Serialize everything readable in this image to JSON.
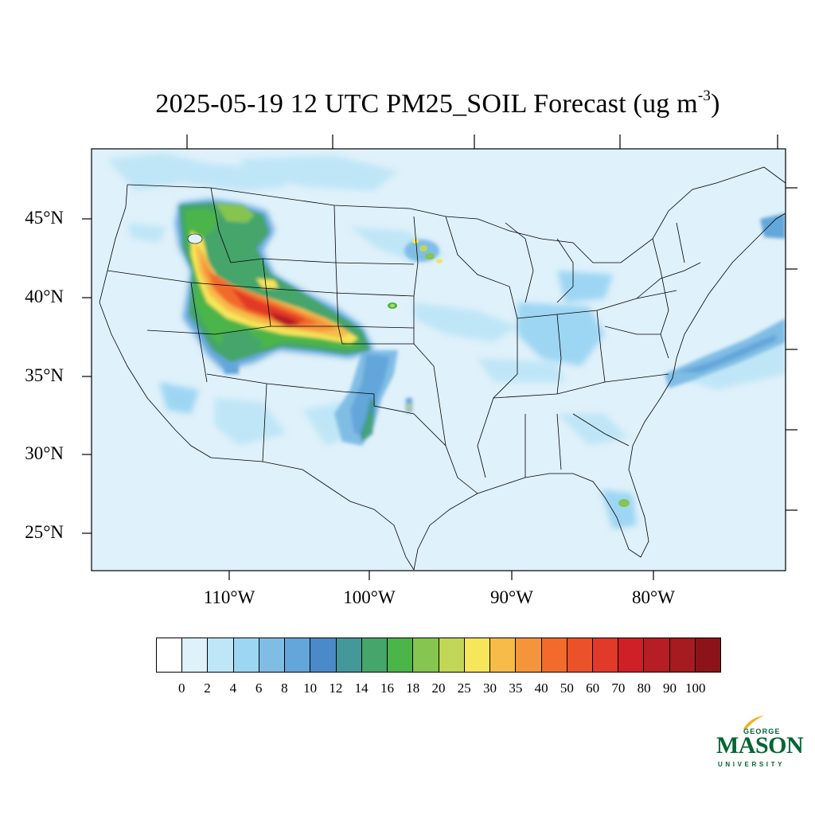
{
  "title": {
    "text": "2025-05-19 12 UTC PM25_SOIL Forecast (ug m",
    "exponent": "-3",
    "close": ")"
  },
  "map": {
    "region": "Continental United States",
    "projection": "Lambert conformal",
    "background_color": "#dff1fa",
    "lat_labels": [
      "45°N",
      "40°N",
      "35°N",
      "30°N",
      "25°N"
    ],
    "lon_labels": [
      "110°W",
      "100°W",
      "90°W",
      "80°W"
    ]
  },
  "chart_data": {
    "type": "heatmap",
    "title": "2025-05-19 12 UTC PM25_SOIL Forecast (ug m-3)",
    "variable": "PM25_SOIL",
    "units": "ug m-3",
    "levels": [
      "0",
      "2",
      "4",
      "6",
      "8",
      "10",
      "12",
      "14",
      "16",
      "18",
      "20",
      "25",
      "30",
      "35",
      "40",
      "50",
      "60",
      "70",
      "80",
      "90",
      "100"
    ],
    "colors": [
      "#ffffff",
      "#dff1fa",
      "#bfe6f7",
      "#9dd6f3",
      "#80bde5",
      "#64a6da",
      "#4a8ac8",
      "#43999a",
      "#45a56b",
      "#4bb54a",
      "#85c550",
      "#c2d658",
      "#f7e55a",
      "#f6bb48",
      "#f4953c",
      "#f26b2c",
      "#ea522a",
      "#e13a28",
      "#d02027",
      "#b71d24",
      "#a51b20",
      "#8c1418"
    ],
    "features": [
      {
        "name": "Plume over Idaho/Wyoming to Kansas",
        "max_level": "100"
      },
      {
        "name": "Eastern Texas panhandle / Oklahoma band",
        "max_level": "20"
      },
      {
        "name": "Minnesota small cells",
        "max_level": "25"
      },
      {
        "name": "Atlantic offshore band",
        "max_level": "10"
      }
    ]
  },
  "logo": {
    "top": "GEORGE",
    "main": "MASON",
    "bottom": "UNIVERSITY",
    "color": "#006633",
    "accent": "#f2b01e"
  }
}
